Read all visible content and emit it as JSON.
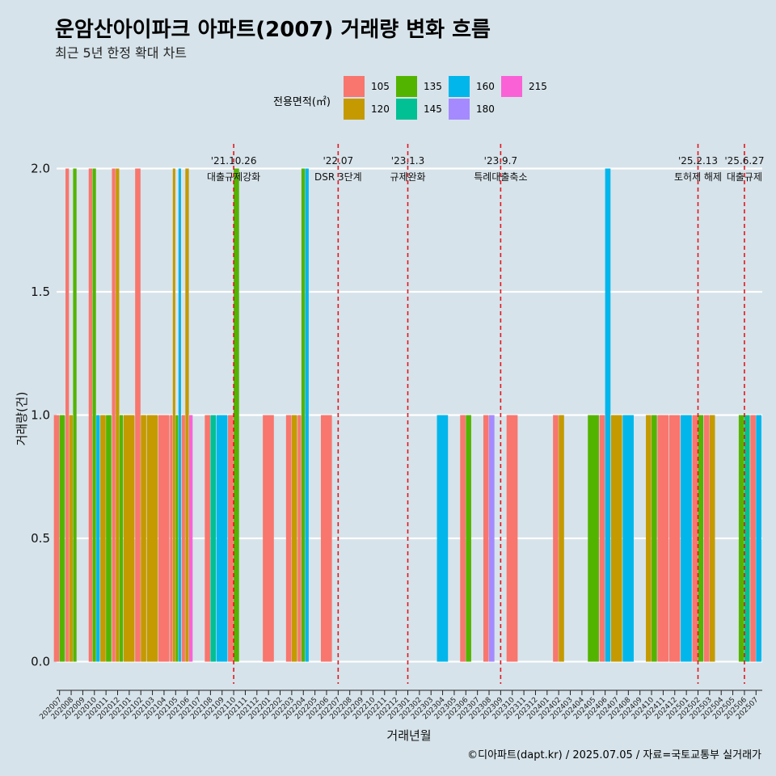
{
  "title": "운암산아이파크 아파트(2007) 거래량 변화 흐름",
  "subtitle": "최근 5년 한정 확대 차트",
  "caption": "©디아파트(dapt.kr) / 2025.07.05 / 자료=국토교통부 실거래가",
  "legend": {
    "title": "전용면적(㎡)",
    "items": [
      {
        "label": "105",
        "color": "#F8766D"
      },
      {
        "label": "120",
        "color": "#C49A00"
      },
      {
        "label": "135",
        "color": "#53B400"
      },
      {
        "label": "145",
        "color": "#00C094"
      },
      {
        "label": "160",
        "color": "#00B6EB"
      },
      {
        "label": "180",
        "color": "#A58AFF"
      },
      {
        "label": "215",
        "color": "#FB61D7"
      }
    ]
  },
  "chart_data": {
    "type": "bar",
    "title": "운암산아이파크 아파트(2007) 거래량 변화 흐름",
    "xlabel": "거래년월",
    "ylabel": "거래량(건)",
    "ylim": [
      -0.09,
      2.1
    ],
    "yticks": [
      0.0,
      0.5,
      1.0,
      1.5,
      2.0
    ],
    "ytick_labels": [
      "0.0",
      "0.5",
      "1.0",
      "1.5",
      "2.0"
    ],
    "months": [
      "202007",
      "202008",
      "202009",
      "202010",
      "202011",
      "202012",
      "202101",
      "202102",
      "202103",
      "202104",
      "202105",
      "202106",
      "202107",
      "202108",
      "202109",
      "202110",
      "202111",
      "202112",
      "202201",
      "202202",
      "202203",
      "202204",
      "202205",
      "202206",
      "202207",
      "202208",
      "202209",
      "202210",
      "202211",
      "202212",
      "202301",
      "202302",
      "202303",
      "202304",
      "202305",
      "202306",
      "202307",
      "202308",
      "202309",
      "202310",
      "202311",
      "202312",
      "202401",
      "202402",
      "202403",
      "202404",
      "202405",
      "202406",
      "202407",
      "202408",
      "202409",
      "202410",
      "202411",
      "202412",
      "202501",
      "202502",
      "202503",
      "202504",
      "202505",
      "202506",
      "202507"
    ],
    "bars": [
      {
        "month": "202007",
        "area": "105",
        "value": 1
      },
      {
        "month": "202007",
        "area": "135",
        "value": 1
      },
      {
        "month": "202008",
        "area": "105",
        "value": 2
      },
      {
        "month": "202008",
        "area": "120",
        "value": 1
      },
      {
        "month": "202008",
        "area": "135",
        "value": 2
      },
      {
        "month": "202010",
        "area": "105",
        "value": 2
      },
      {
        "month": "202010",
        "area": "135",
        "value": 2
      },
      {
        "month": "202010",
        "area": "160",
        "value": 1
      },
      {
        "month": "202011",
        "area": "120",
        "value": 1
      },
      {
        "month": "202011",
        "area": "135",
        "value": 1
      },
      {
        "month": "202012",
        "area": "105",
        "value": 2
      },
      {
        "month": "202012",
        "area": "120",
        "value": 2
      },
      {
        "month": "202012",
        "area": "135",
        "value": 1
      },
      {
        "month": "202101",
        "area": "120",
        "value": 1
      },
      {
        "month": "202102",
        "area": "105",
        "value": 2
      },
      {
        "month": "202102",
        "area": "120",
        "value": 1
      },
      {
        "month": "202103",
        "area": "120",
        "value": 1
      },
      {
        "month": "202104",
        "area": "105",
        "value": 1
      },
      {
        "month": "202105",
        "area": "105",
        "value": 1
      },
      {
        "month": "202105",
        "area": "120",
        "value": 2
      },
      {
        "month": "202105",
        "area": "135",
        "value": 1
      },
      {
        "month": "202105",
        "area": "160",
        "value": 2
      },
      {
        "month": "202106",
        "area": "105",
        "value": 1
      },
      {
        "month": "202106",
        "area": "120",
        "value": 2
      },
      {
        "month": "202106",
        "area": "215",
        "value": 1
      },
      {
        "month": "202108",
        "area": "105",
        "value": 1
      },
      {
        "month": "202108",
        "area": "145",
        "value": 1
      },
      {
        "month": "202109",
        "area": "160",
        "value": 1
      },
      {
        "month": "202110",
        "area": "105",
        "value": 1
      },
      {
        "month": "202110",
        "area": "135",
        "value": 2
      },
      {
        "month": "202201",
        "area": "105",
        "value": 1
      },
      {
        "month": "202203",
        "area": "105",
        "value": 1
      },
      {
        "month": "202203",
        "area": "120",
        "value": 1
      },
      {
        "month": "202204",
        "area": "105",
        "value": 1
      },
      {
        "month": "202204",
        "area": "135",
        "value": 2
      },
      {
        "month": "202204",
        "area": "160",
        "value": 2
      },
      {
        "month": "202206",
        "area": "105",
        "value": 1
      },
      {
        "month": "202304",
        "area": "160",
        "value": 1
      },
      {
        "month": "202306",
        "area": "105",
        "value": 1
      },
      {
        "month": "202306",
        "area": "135",
        "value": 1
      },
      {
        "month": "202308",
        "area": "105",
        "value": 1
      },
      {
        "month": "202308",
        "area": "180",
        "value": 1
      },
      {
        "month": "202310",
        "area": "105",
        "value": 1
      },
      {
        "month": "202402",
        "area": "105",
        "value": 1
      },
      {
        "month": "202402",
        "area": "120",
        "value": 1
      },
      {
        "month": "202405",
        "area": "135",
        "value": 1
      },
      {
        "month": "202406",
        "area": "105",
        "value": 1
      },
      {
        "month": "202406",
        "area": "160",
        "value": 2
      },
      {
        "month": "202407",
        "area": "120",
        "value": 1
      },
      {
        "month": "202408",
        "area": "160",
        "value": 1
      },
      {
        "month": "202410",
        "area": "120",
        "value": 1
      },
      {
        "month": "202410",
        "area": "135",
        "value": 1
      },
      {
        "month": "202411",
        "area": "105",
        "value": 1
      },
      {
        "month": "202412",
        "area": "105",
        "value": 1
      },
      {
        "month": "202501",
        "area": "160",
        "value": 1
      },
      {
        "month": "202502",
        "area": "105",
        "value": 1
      },
      {
        "month": "202502",
        "area": "135",
        "value": 1
      },
      {
        "month": "202503",
        "area": "105",
        "value": 1
      },
      {
        "month": "202503",
        "area": "120",
        "value": 1
      },
      {
        "month": "202506",
        "area": "135",
        "value": 1
      },
      {
        "month": "202506",
        "area": "145",
        "value": 1
      },
      {
        "month": "202507",
        "area": "105",
        "value": 1
      },
      {
        "month": "202507",
        "area": "160",
        "value": 1
      }
    ],
    "events": [
      {
        "month": "202110",
        "date": "'21.10.26",
        "label": "대출규제강화"
      },
      {
        "month": "202207",
        "date": "'22.07",
        "label": "DSR 3단계"
      },
      {
        "month": "202301",
        "date": "'23.1.3",
        "label": "규제완화"
      },
      {
        "month": "202309",
        "date": "'23.9.7",
        "label": "특례대출축소"
      },
      {
        "month": "202502",
        "date": "'25.2.13",
        "label": "토허제 해제"
      },
      {
        "month": "202506",
        "date": "'25.6.27",
        "label": "대출규제"
      }
    ]
  }
}
